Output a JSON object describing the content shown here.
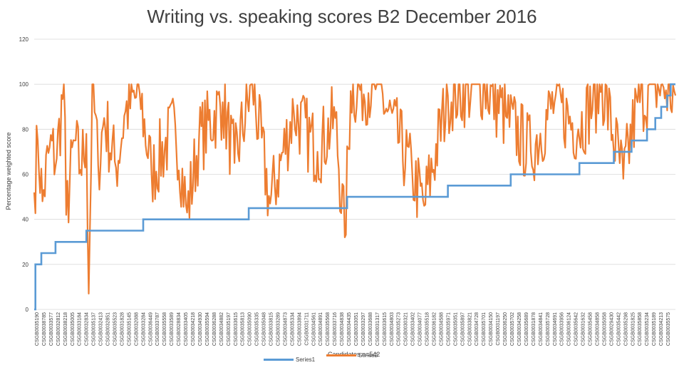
{
  "chart_data": {
    "type": "line",
    "title": "Writing vs. speaking scores B2 December 2016",
    "xlabel": "Candidates n=542",
    "ylabel": "Percentage weighted score",
    "ylim": [
      0,
      120
    ],
    "yticks": [
      0,
      20,
      40,
      60,
      80,
      100,
      120
    ],
    "grid": true,
    "legend_position": "bottom",
    "n_points": 542,
    "colors": {
      "Series1": "#5b9bd5",
      "Series2": "#ed7d31"
    },
    "x_tick_labels": [
      "CSGB0035190",
      "CSGB0038785",
      "CSGB0033577",
      "CSGB0032812",
      "CSGB0038218",
      "CSGB0035005",
      "CSGB0033184",
      "CSGB0032834",
      "CSGB0035137",
      "CSGB0032413",
      "CSGB0032851",
      "CSGB0035523",
      "CSGB0031828",
      "CSGB0035145",
      "CSGB0032088",
      "CSGB0033284",
      "CSGB0036449",
      "CSGB0033787",
      "CSGB0035558",
      "CSGB0033589",
      "CSGB0028834",
      "CSGB0033405",
      "CSGB0034218",
      "CSGB0034930",
      "CSGB0035594",
      "CSGB0036288",
      "CSGB0034882",
      "CSGB0035197",
      "CSGB0033615",
      "CSGB0035813",
      "CSGB0035090",
      "CSGB0035335",
      "CSGB0035048",
      "CSGB0033815",
      "CSGB0033289",
      "CSGB0034873",
      "CSGB0035334",
      "CSGB0033894",
      "CSGB0031711",
      "CSGB0034561",
      "CSGB0034891",
      "CSGB0035568",
      "CSGB0033716",
      "CSGB0034838",
      "CSGB0034435",
      "CSGB0033051",
      "CSGB0033297",
      "CSGB0033688",
      "CSGB0031317",
      "CSGB0033615",
      "CSGB0034803",
      "CSGB0035273",
      "CSGB0030321",
      "CSGB0033402",
      "CSGB0034077",
      "CSGB0035518",
      "CSGB0036182",
      "CSGB0034588",
      "CSGB0035971",
      "CSGB0035051",
      "CSGB0035897",
      "CSGB0033821",
      "CSGB0034728",
      "CSGB0035701",
      "CSGB0034150",
      "CSGB0031197",
      "CSGB0036250",
      "CSGB0035702",
      "CSGB0034258",
      "CSGB0035689",
      "CSGB0031878",
      "CSGB0034841",
      "CSGB0035728",
      "CSGB0034691",
      "CSGB0033956",
      "CSGB0036124",
      "CSGB0035642",
      "CSGB0031632",
      "CSGB0035458",
      "CSGB0034858",
      "CSGB0035058",
      "CSGB0029430",
      "CSGB0035442",
      "CSGB0035298",
      "CSGB0031825",
      "CSGB0035858",
      "CSGB0035234",
      "CSGB0035189",
      "CSGB0034213",
      "CSGB0035575"
    ],
    "series": [
      {
        "name": "Series1",
        "segments": [
          {
            "from_candidate": 1,
            "to_candidate": 2,
            "value": 0
          },
          {
            "from_candidate": 2,
            "to_candidate": 7,
            "value": 20
          },
          {
            "from_candidate": 7,
            "to_candidate": 19,
            "value": 25
          },
          {
            "from_candidate": 19,
            "to_candidate": 45,
            "value": 30
          },
          {
            "from_candidate": 45,
            "to_candidate": 93,
            "value": 35
          },
          {
            "from_candidate": 93,
            "to_candidate": 182,
            "value": 40
          },
          {
            "from_candidate": 182,
            "to_candidate": 265,
            "value": 45
          },
          {
            "from_candidate": 265,
            "to_candidate": 350,
            "value": 50
          },
          {
            "from_candidate": 350,
            "to_candidate": 403,
            "value": 55
          },
          {
            "from_candidate": 403,
            "to_candidate": 461,
            "value": 60
          },
          {
            "from_candidate": 461,
            "to_candidate": 490,
            "value": 65
          },
          {
            "from_candidate": 490,
            "to_candidate": 505,
            "value": 70
          },
          {
            "from_candidate": 505,
            "to_candidate": 518,
            "value": 75
          },
          {
            "from_candidate": 518,
            "to_candidate": 525,
            "value": 80
          },
          {
            "from_candidate": 525,
            "to_candidate": 530,
            "value": 85
          },
          {
            "from_candidate": 530,
            "to_candidate": 535,
            "value": 90
          },
          {
            "from_candidate": 535,
            "to_candidate": 538,
            "value": 95
          },
          {
            "from_candidate": 538,
            "to_candidate": 542,
            "value": 100
          }
        ]
      },
      {
        "name": "Series2",
        "description_points": [
          {
            "candidate": 1,
            "value": 52
          },
          {
            "candidate": 4,
            "value": 75
          },
          {
            "candidate": 8,
            "value": 48
          },
          {
            "candidate": 14,
            "value": 72
          },
          {
            "candidate": 20,
            "value": 67
          },
          {
            "candidate": 26,
            "value": 100
          },
          {
            "candidate": 28,
            "value": 42
          },
          {
            "candidate": 35,
            "value": 75
          },
          {
            "candidate": 40,
            "value": 62
          },
          {
            "candidate": 45,
            "value": 78
          },
          {
            "candidate": 47,
            "value": 7
          },
          {
            "candidate": 50,
            "value": 100
          },
          {
            "candidate": 55,
            "value": 64
          },
          {
            "candidate": 60,
            "value": 85
          },
          {
            "candidate": 70,
            "value": 63
          },
          {
            "candidate": 78,
            "value": 88
          },
          {
            "candidate": 90,
            "value": 96
          },
          {
            "candidate": 100,
            "value": 60
          },
          {
            "candidate": 120,
            "value": 82
          },
          {
            "candidate": 130,
            "value": 43
          },
          {
            "candidate": 140,
            "value": 75
          },
          {
            "candidate": 160,
            "value": 92
          },
          {
            "candidate": 170,
            "value": 65
          },
          {
            "candidate": 185,
            "value": 100
          },
          {
            "candidate": 200,
            "value": 47
          },
          {
            "candidate": 220,
            "value": 88
          },
          {
            "candidate": 240,
            "value": 70
          },
          {
            "candidate": 255,
            "value": 85
          },
          {
            "candidate": 263,
            "value": 32
          },
          {
            "candidate": 268,
            "value": 97
          },
          {
            "candidate": 290,
            "value": 100
          },
          {
            "candidate": 320,
            "value": 60
          },
          {
            "candidate": 330,
            "value": 46
          },
          {
            "candidate": 350,
            "value": 95
          },
          {
            "candidate": 380,
            "value": 100
          },
          {
            "candidate": 400,
            "value": 85
          },
          {
            "candidate": 420,
            "value": 70
          },
          {
            "candidate": 440,
            "value": 92
          },
          {
            "candidate": 460,
            "value": 80
          },
          {
            "candidate": 480,
            "value": 100
          },
          {
            "candidate": 498,
            "value": 58
          },
          {
            "candidate": 510,
            "value": 92
          },
          {
            "candidate": 525,
            "value": 100
          },
          {
            "candidate": 542,
            "value": 95
          }
        ]
      }
    ]
  }
}
